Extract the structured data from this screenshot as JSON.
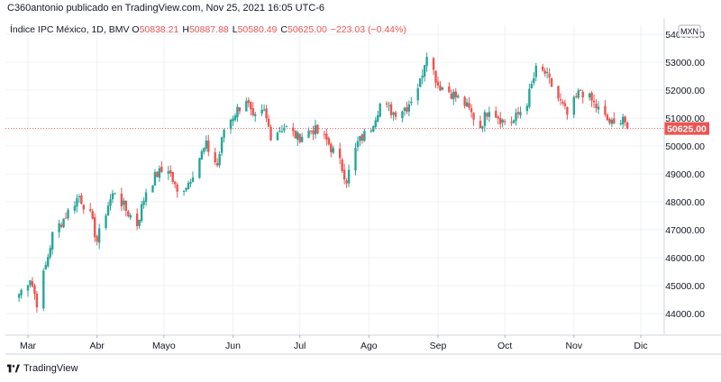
{
  "header": {
    "text": "C360antonio publicado en TradingView.com, Nov 25, 2021 16:05 UTC-6"
  },
  "legend": {
    "symbol": "Índice IPC México, 1D, BMV",
    "o_label": "O",
    "o_value": "50838.21",
    "h_label": "H",
    "h_value": "50887.88",
    "l_label": "L",
    "l_value": "50580.49",
    "c_label": "C",
    "c_value": "50625.00",
    "change": "−223.03 (−0.44%)"
  },
  "currency_badge": "MXN",
  "last_price_label": "50625.00",
  "footer": {
    "brand": "TradingView"
  },
  "colors": {
    "up": "#26a69a",
    "down": "#ef5350",
    "grid": "#eef1f5",
    "axis": "#131722"
  },
  "chart_data": {
    "type": "candlestick",
    "title": "Índice IPC México, 1D, BMV",
    "x_ticks": [
      "Mar",
      "Abr",
      "Mayo",
      "Jun",
      "Jul",
      "Ago",
      "Sep",
      "Oct",
      "Nov",
      "Dic"
    ],
    "y_ticks": [
      44000,
      45000,
      46000,
      47000,
      48000,
      49000,
      50000,
      51000,
      52000,
      53000,
      54000
    ],
    "ylim": [
      43200,
      54700
    ],
    "grid": true,
    "last_price": 50625.0,
    "ohlc": {
      "open": 50838.21,
      "high": 50887.88,
      "low": 50580.49,
      "close": 50625.0
    },
    "close_path": [
      [
        "2021-02-25",
        44700
      ],
      [
        "2021-03-02",
        45300
      ],
      [
        "2021-03-05",
        44400
      ],
      [
        "2021-03-09",
        45700
      ],
      [
        "2021-03-12",
        46800
      ],
      [
        "2021-03-17",
        47400
      ],
      [
        "2021-03-22",
        48000
      ],
      [
        "2021-03-24",
        48200
      ],
      [
        "2021-03-29",
        47500
      ],
      [
        "2021-04-01",
        46600
      ],
      [
        "2021-04-06",
        47900
      ],
      [
        "2021-04-09",
        48400
      ],
      [
        "2021-04-14",
        47700
      ],
      [
        "2021-04-19",
        47200
      ],
      [
        "2021-04-23",
        48400
      ],
      [
        "2021-04-28",
        49000
      ],
      [
        "2021-05-03",
        49200
      ],
      [
        "2021-05-07",
        48300
      ],
      [
        "2021-05-12",
        48700
      ],
      [
        "2021-05-17",
        49600
      ],
      [
        "2021-05-20",
        50000
      ],
      [
        "2021-05-25",
        49300
      ],
      [
        "2021-05-28",
        50600
      ],
      [
        "2021-06-02",
        51200
      ],
      [
        "2021-06-07",
        51700
      ],
      [
        "2021-06-10",
        50900
      ],
      [
        "2021-06-15",
        51200
      ],
      [
        "2021-06-18",
        50400
      ],
      [
        "2021-06-24",
        50700
      ],
      [
        "2021-06-30",
        50300
      ],
      [
        "2021-07-07",
        50600
      ],
      [
        "2021-07-13",
        50200
      ],
      [
        "2021-07-19",
        49400
      ],
      [
        "2021-07-22",
        48800
      ],
      [
        "2021-07-27",
        50100
      ],
      [
        "2021-08-02",
        50700
      ],
      [
        "2021-08-06",
        51500
      ],
      [
        "2021-08-12",
        51200
      ],
      [
        "2021-08-18",
        51400
      ],
      [
        "2021-08-24",
        52300
      ],
      [
        "2021-08-27",
        53400
      ],
      [
        "2021-09-01",
        52200
      ],
      [
        "2021-09-07",
        51900
      ],
      [
        "2021-09-13",
        51500
      ],
      [
        "2021-09-20",
        50700
      ],
      [
        "2021-09-24",
        51400
      ],
      [
        "2021-09-30",
        50900
      ],
      [
        "2021-10-05",
        50900
      ],
      [
        "2021-10-11",
        51600
      ],
      [
        "2021-10-15",
        52700
      ],
      [
        "2021-10-19",
        52600
      ],
      [
        "2021-10-25",
        51700
      ],
      [
        "2021-10-29",
        51100
      ],
      [
        "2021-11-04",
        52000
      ],
      [
        "2021-11-09",
        51600
      ],
      [
        "2021-11-15",
        51000
      ],
      [
        "2021-11-19",
        50700
      ],
      [
        "2021-11-23",
        51100
      ],
      [
        "2021-11-25",
        50625
      ]
    ]
  }
}
